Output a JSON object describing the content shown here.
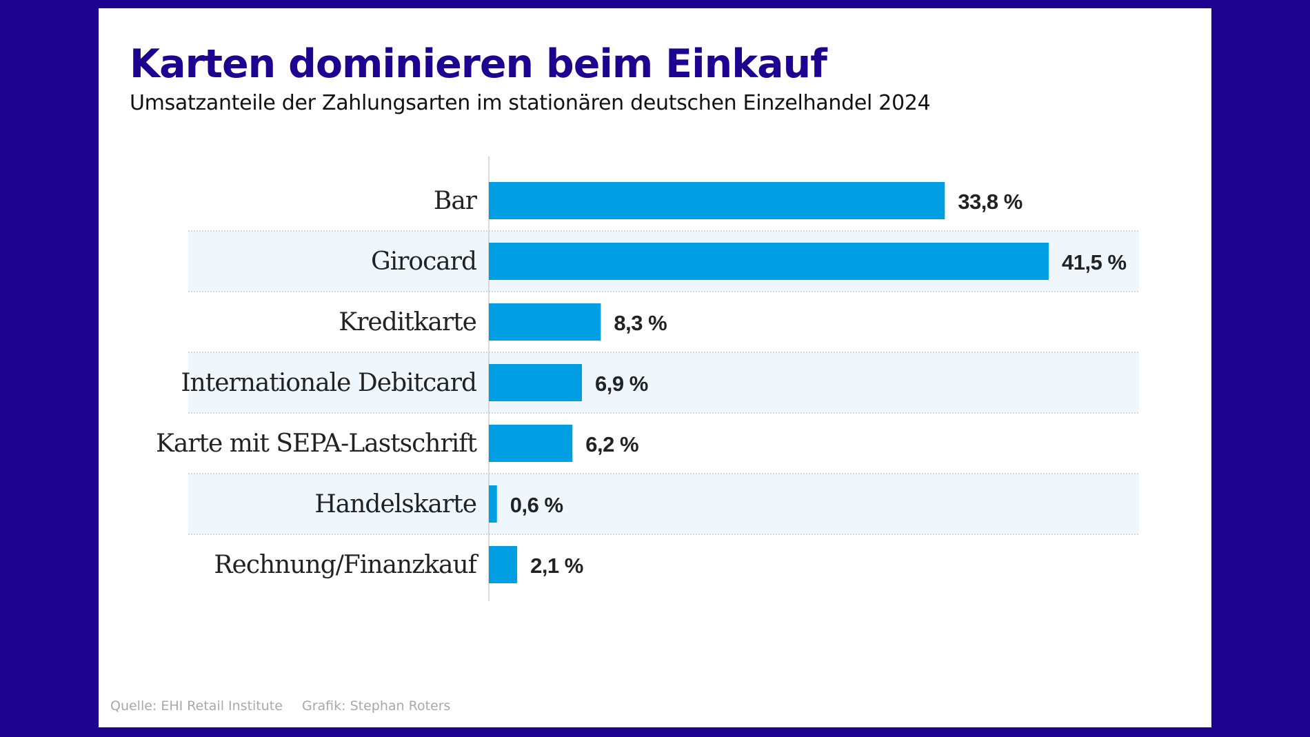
{
  "title": "Karten dominieren beim Einkauf",
  "subtitle": "Umsatzanteile der Zahlungsarten im stationären deutschen Einzelhandel 2024",
  "footer": {
    "source": "Quelle: EHI Retail Institute",
    "credit": "Grafik: Stephan Roters"
  },
  "colors": {
    "background": "#1e0391",
    "bar": "#009fe3",
    "band": "#eff7fd",
    "title": "#1e0391"
  },
  "chart_data": {
    "type": "bar",
    "orientation": "horizontal",
    "categories": [
      "Bar",
      "Girocard",
      "Kreditkarte",
      "Internationale Debitcard",
      "Karte mit SEPA-Lastschrift",
      "Handelskarte",
      "Rechnung/Finanzkauf"
    ],
    "values": [
      33.8,
      41.5,
      8.3,
      6.9,
      6.2,
      0.6,
      2.1
    ],
    "value_labels": [
      "33,8 %",
      "41,5 %",
      "8,3 %",
      "6,9 %",
      "6,2 %",
      "0,6 %",
      "2,1 %"
    ],
    "unit": "%",
    "xlim": [
      0,
      41.5
    ],
    "grid": false,
    "alternating_bands": true
  }
}
